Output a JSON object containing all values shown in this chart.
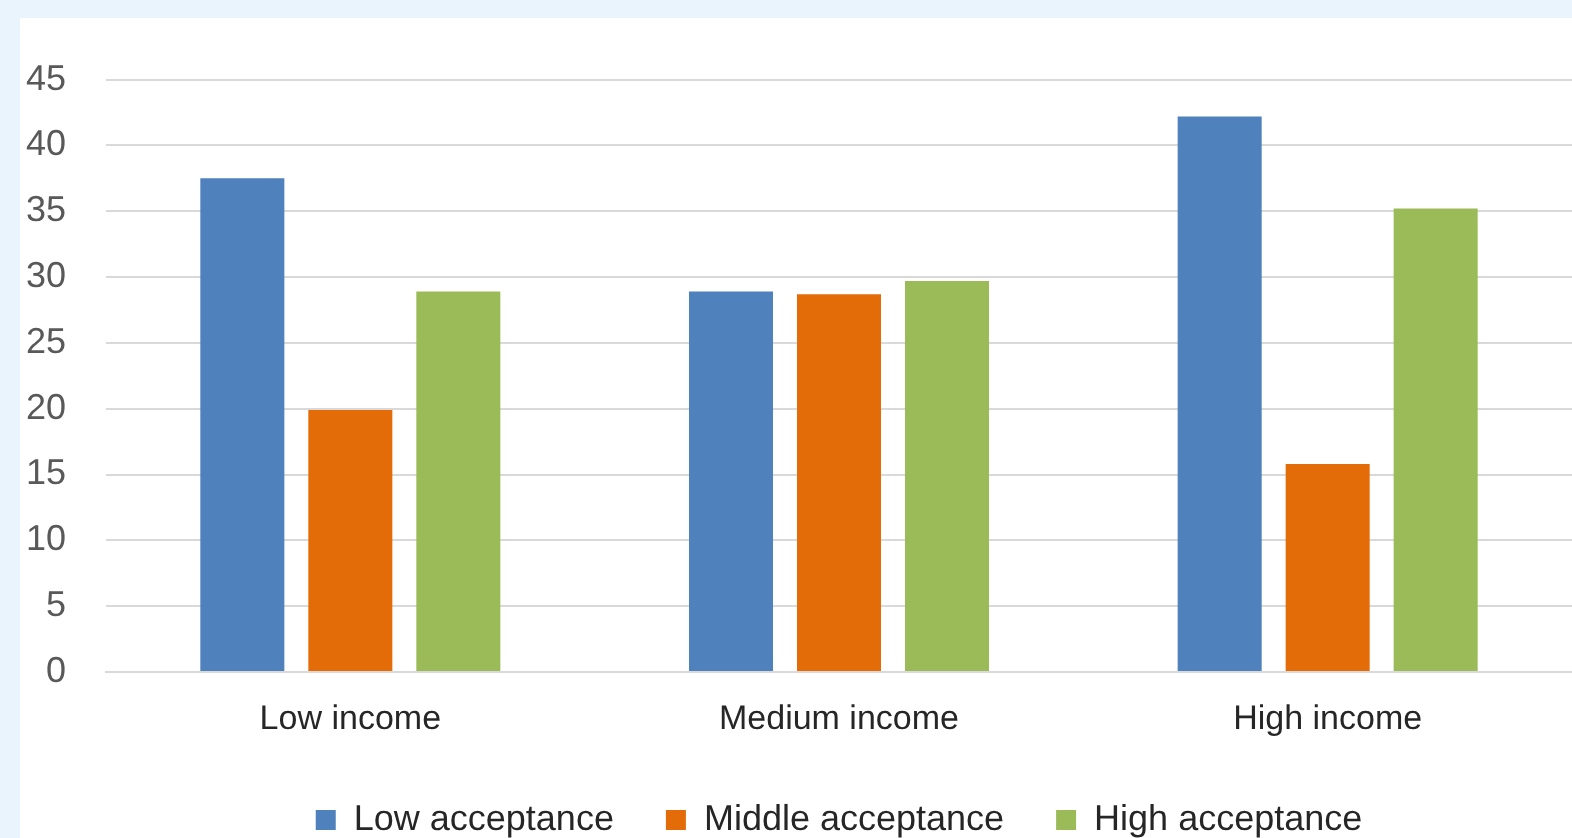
{
  "chart_data": {
    "type": "bar",
    "categories": [
      "Low income",
      "Medium income",
      "High income"
    ],
    "series": [
      {
        "name": "Low acceptance",
        "color": "#4f81bd",
        "values": [
          37.5,
          28.9,
          42.2
        ]
      },
      {
        "name": "Middle acceptance",
        "color": "#e36c09",
        "values": [
          19.9,
          28.7,
          15.8
        ]
      },
      {
        "name": "High acceptance",
        "color": "#9bbb59",
        "values": [
          28.9,
          29.7,
          35.2
        ]
      }
    ],
    "ylim": [
      0,
      45
    ],
    "yticks": [
      0,
      5,
      10,
      15,
      20,
      25,
      30,
      35,
      40,
      45
    ],
    "grid": "y",
    "legend": "bottom"
  }
}
